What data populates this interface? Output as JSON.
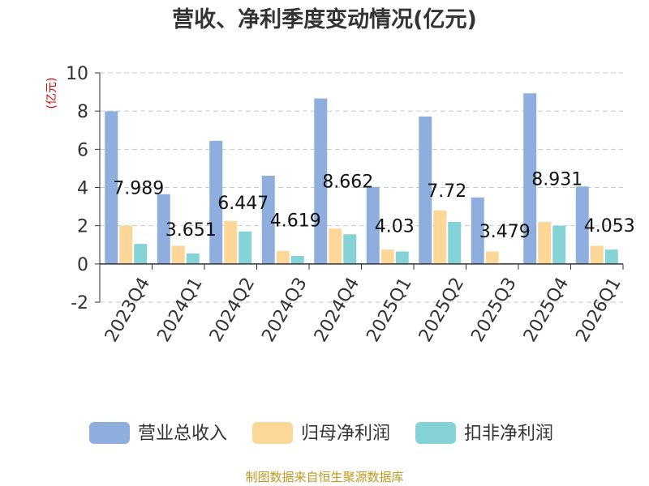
{
  "chart_data": {
    "type": "bar",
    "title": "营收、净利季度变动情况(亿元)",
    "ylabel": "(亿元)",
    "ylim": [
      -2,
      10
    ],
    "yticks": [
      -2,
      0,
      2,
      4,
      6,
      8,
      10
    ],
    "grid": true,
    "legend_position": "bottom",
    "categories": [
      "2023Q4",
      "2024Q1",
      "2024Q2",
      "2024Q3",
      "2024Q4",
      "2025Q1",
      "2025Q2",
      "2025Q3",
      "2025Q4",
      "2026Q1"
    ],
    "series": [
      {
        "name": "营业总收入",
        "color": "#8eaedd",
        "values": [
          7.989,
          3.651,
          6.447,
          4.619,
          8.662,
          4.03,
          7.72,
          3.479,
          8.931,
          4.053
        ]
      },
      {
        "name": "归母净利润",
        "color": "#fdd797",
        "values": [
          2.0,
          0.95,
          2.25,
          0.68,
          1.85,
          0.75,
          2.8,
          0.65,
          2.2,
          0.95
        ]
      },
      {
        "name": "扣非净利润",
        "color": "#85d3d7",
        "values": [
          1.05,
          0.55,
          1.7,
          0.42,
          1.55,
          0.65,
          2.2,
          0.05,
          2.0,
          0.75
        ]
      }
    ],
    "data_labels": [
      "7.989",
      "3.651",
      "6.447",
      "4.619",
      "8.662",
      "4.03",
      "7.72",
      "3.479",
      "8.931",
      "4.053"
    ],
    "source_note": "制图数据来自恒生聚源数据库"
  }
}
